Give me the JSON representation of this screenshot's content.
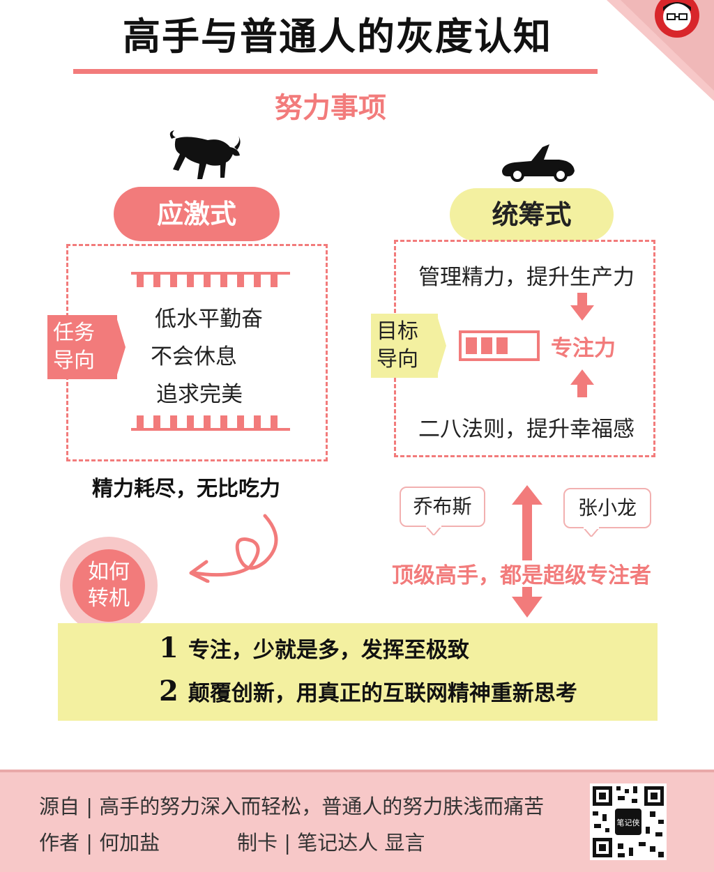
{
  "header": {
    "title": "高手与普通人的灰度认知",
    "subtitle": "努力事项"
  },
  "left": {
    "pill": "应激式",
    "tag": "任务导向",
    "items": [
      "低水平勤奋",
      "不会休息",
      "追求完美"
    ],
    "caption": "精力耗尽，无比吃力",
    "turn": "如何转机",
    "icon": "bull-icon"
  },
  "right": {
    "pill": "统筹式",
    "tag": "目标导向",
    "top_text": "管理精力，提升生产力",
    "focus": "专注力",
    "bottom_text": "二八法则，提升幸福感",
    "bubbles": [
      "乔布斯",
      "张小龙"
    ],
    "masters": "顶级高手，都是超级专注者",
    "icon": "sports-car-icon"
  },
  "plan": [
    {
      "num": "1",
      "text": "专注，少就是多，发挥至极致"
    },
    {
      "num": "2",
      "text": "颠覆创新，用真正的互联网精神重新思考"
    }
  ],
  "footer": {
    "source_label": "源自 | 高手的努力深入而轻松，普通人的努力肤浅而痛苦",
    "author_label": "作者 | 何加盐",
    "card_label": "制卡 | 笔记达人  显言",
    "qr_text": "笔记侠"
  },
  "colors": {
    "accent": "#f27b7b",
    "yellow": "#f3f0a0",
    "footer": "#f7c8c8"
  }
}
